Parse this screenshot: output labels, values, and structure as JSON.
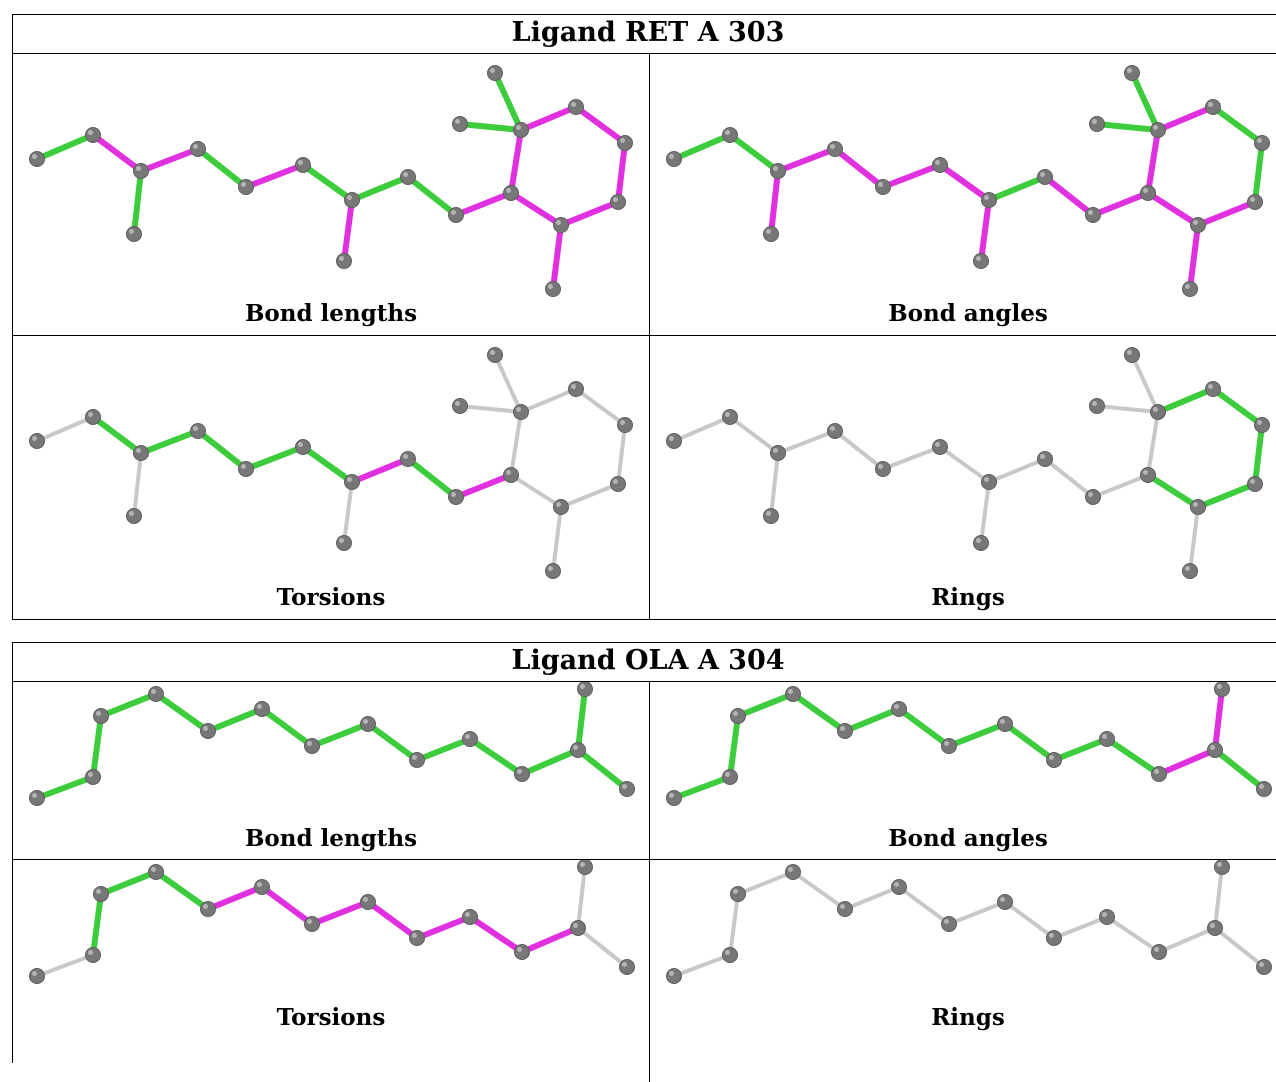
{
  "panels": [
    {
      "title": "Ligand RET A 303",
      "captions": [
        "Bond lengths",
        "Bond angles",
        "Torsions",
        "Rings"
      ]
    },
    {
      "title": "Ligand OLA A 304",
      "captions": [
        "Bond lengths",
        "Bond angles",
        "Torsions",
        "Rings"
      ]
    }
  ],
  "colors": {
    "green": "#3ccc3c",
    "magenta": "#e030e0",
    "gray": "#c8c8c8",
    "atom": "#777777"
  }
}
